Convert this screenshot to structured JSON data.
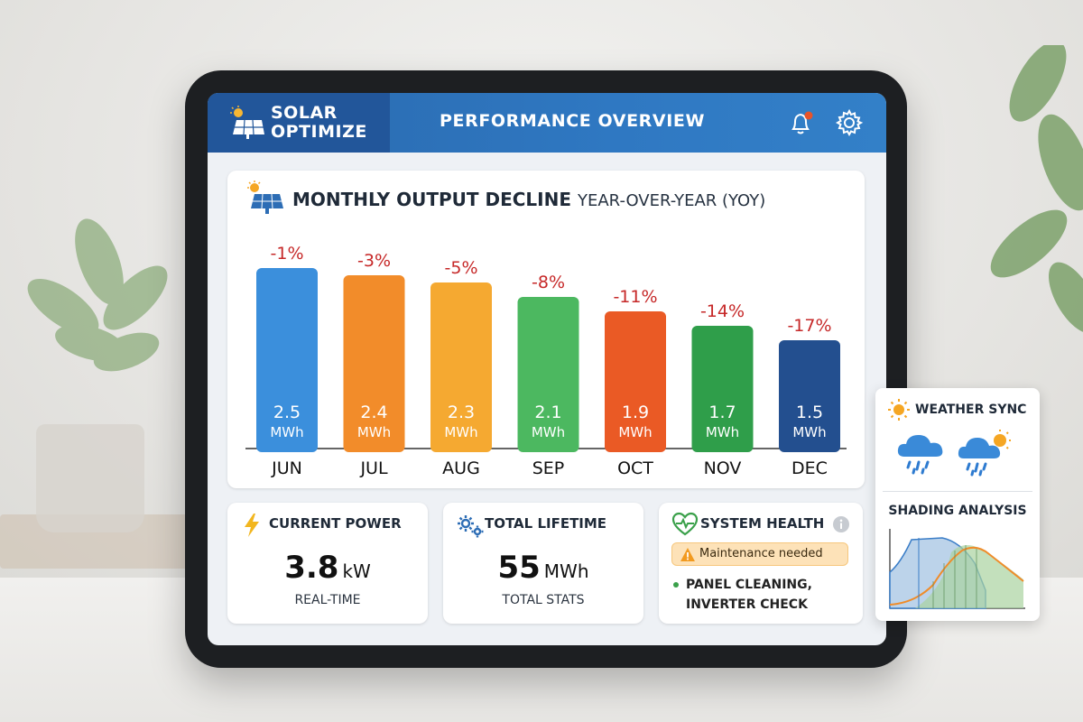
{
  "app": {
    "brand_line1": "SOLAR",
    "brand_line2": "OPTIMIZE",
    "page_title": "PERFORMANCE OVERVIEW"
  },
  "header_icons": [
    "bell-icon",
    "gear-icon"
  ],
  "chart_card": {
    "title": "MONTHLY OUTPUT DECLINE",
    "subtitle": "YEAR-OVER-YEAR (YOY)"
  },
  "chart_data": {
    "type": "bar",
    "title": "MONTHLY OUTPUT DECLINE YEAR-OVER-YEAR (YOY)",
    "categories": [
      "JUN",
      "JUL",
      "AUG",
      "SEP",
      "OCT",
      "NOV",
      "DEC"
    ],
    "values": [
      2.5,
      2.4,
      2.3,
      2.1,
      1.9,
      1.7,
      1.5
    ],
    "value_labels": [
      "2.5",
      "2.4",
      "2.3",
      "2.1",
      "1.9",
      "1.7",
      "1.5"
    ],
    "unit": "MWh",
    "change_labels": [
      "-1%",
      "-3%",
      "-5%",
      "-8%",
      "-11%",
      "-14%",
      "-17%"
    ],
    "colors": [
      "#3b8fdc",
      "#f28c2a",
      "#f5a931",
      "#4cb860",
      "#ea5a25",
      "#2f9e4a",
      "#234f8f"
    ],
    "change_color": "#c62828",
    "ylim": [
      0,
      2.5
    ],
    "grid": false,
    "legend": "none"
  },
  "stats": {
    "current_power": {
      "title": "CURRENT POWER",
      "value": "3.8",
      "unit": "kW",
      "caption": "REAL-TIME"
    },
    "total_lifetime": {
      "title": "TOTAL LIFETIME",
      "value": "55",
      "unit": "MWh",
      "caption": "TOTAL STATS"
    },
    "system_health": {
      "title": "SYSTEM HEALTH",
      "alert": "Maintenance needed",
      "tasks_line1": "PANEL CLEANING,",
      "tasks_line2": "INVERTER CHECK"
    }
  },
  "side_panel": {
    "weather_title": "WEATHER SYNC",
    "shading_title": "SHADING ANALYSIS"
  },
  "colors": {
    "header_blue": "#2f78c2",
    "brand_blue": "#22569a",
    "warning_bg": "#fde2b8",
    "negative_red": "#c62828"
  }
}
